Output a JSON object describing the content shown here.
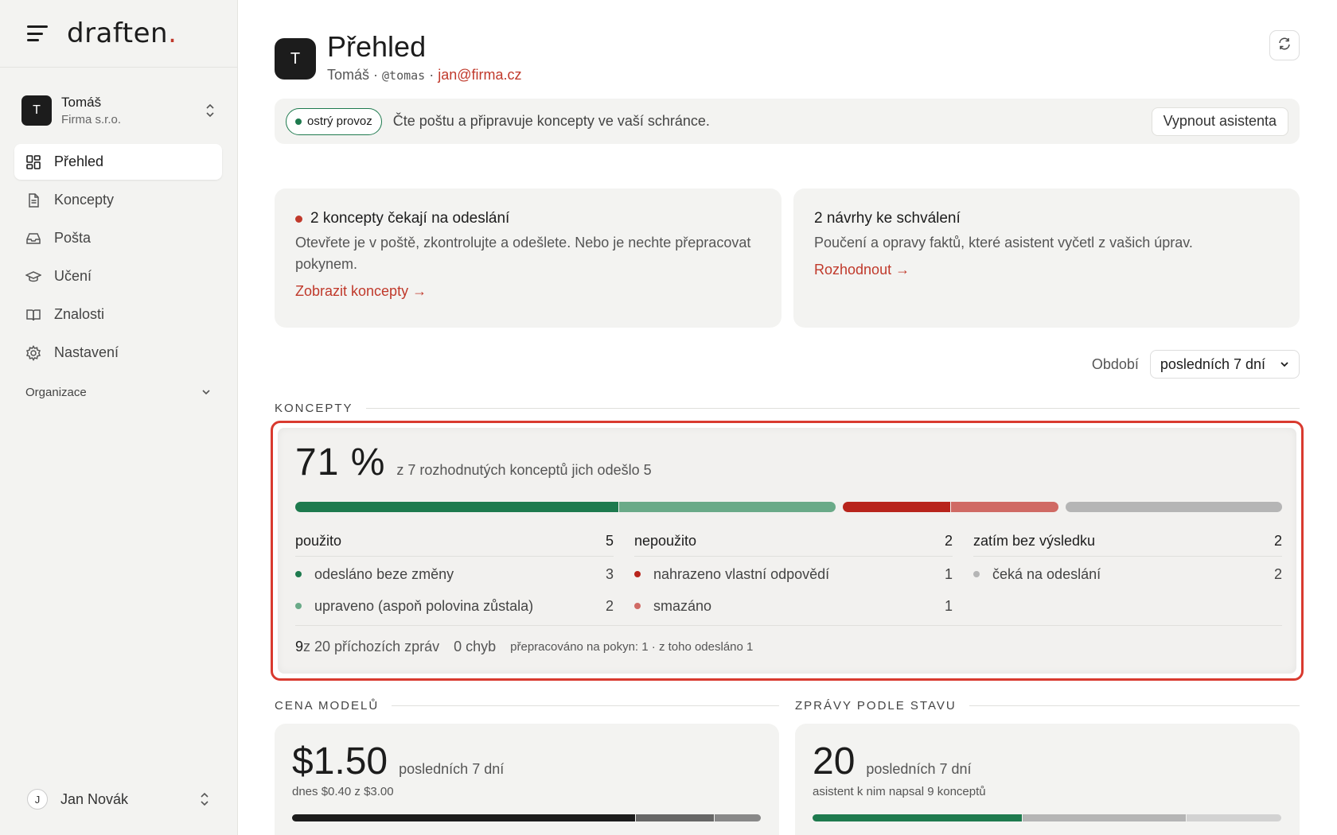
{
  "brand": {
    "name": "draften",
    "dot": "."
  },
  "account": {
    "initial": "T",
    "name": "Tomáš",
    "org": "Firma s.r.o."
  },
  "nav": [
    {
      "label": "Přehled",
      "icon": "grid-icon",
      "active": true
    },
    {
      "label": "Koncepty",
      "icon": "document-icon",
      "active": false
    },
    {
      "label": "Pošta",
      "icon": "inbox-icon",
      "active": false
    },
    {
      "label": "Učení",
      "icon": "graduation-cap-icon",
      "active": false
    },
    {
      "label": "Znalosti",
      "icon": "book-icon",
      "active": false
    },
    {
      "label": "Nastavení",
      "icon": "gear-icon",
      "active": false
    }
  ],
  "org_section": {
    "label": "Organizace"
  },
  "user": {
    "initial": "J",
    "name": "Jan Novák"
  },
  "header": {
    "initial": "T",
    "title": "Přehled",
    "name": "Tomáš",
    "sep1": " · ",
    "handle": "@tomas",
    "sep2": " · ",
    "email": "jan@firma.cz"
  },
  "status": {
    "pill": "ostrý provoz",
    "text": "Čte poštu a připravuje koncepty ve vaší schránce.",
    "button": "Vypnout asistenta"
  },
  "cards": {
    "drafts_waiting": {
      "title": "2 koncepty čekají na odeslání",
      "text": "Otevřete je v poště, zkontrolujte a odešlete. Nebo je nechte přepracovat pokynem.",
      "link": "Zobrazit koncepty →"
    },
    "approvals": {
      "title": "2 návrhy ke schválení",
      "text": "Poučení a opravy faktů, které asistent vyčetl z vašich úprav.",
      "link": "Rozhodnout →"
    }
  },
  "period": {
    "label": "Období",
    "value": "posledních 7 dní"
  },
  "sections": {
    "drafts": "KONCEPTY",
    "cost": "CENA MODELŮ",
    "messages": "ZPRÁVY PODLE STAVU"
  },
  "drafts": {
    "percent": "71 %",
    "caption": "z 7 rozhodnutých konceptů jich odešlo 5",
    "colors": {
      "sent_unchanged": "#1e7a4e",
      "edited": "#6aaa88",
      "replaced": "#b8241c",
      "deleted": "#d06a64",
      "waiting": "#b5b5b5"
    },
    "bar": {
      "sent_unchanged": 3,
      "edited": 2,
      "replaced": 1,
      "deleted": 1,
      "waiting": 2
    },
    "used": {
      "label": "použito",
      "count": "5",
      "rows": [
        {
          "label": "odesláno beze změny",
          "count": "3"
        },
        {
          "label": "upraveno (aspoň polovina zůstala)",
          "count": "2"
        }
      ]
    },
    "unused": {
      "label": "nepoužito",
      "count": "2",
      "rows": [
        {
          "label": "nahrazeno vlastní odpovědí",
          "count": "1"
        },
        {
          "label": "smazáno",
          "count": "1"
        }
      ]
    },
    "pending": {
      "label": "zatím bez výsledku",
      "count": "2",
      "rows": [
        {
          "label": "čeká na odeslání",
          "count": "2"
        }
      ]
    },
    "footer": {
      "count": "9",
      "of_text": " z 20 příchozích zpráv",
      "errors": "0 chyb",
      "reworked": "přepracováno na pokyn: 1 · z toho odesláno 1"
    }
  },
  "cost": {
    "value": "$1.50",
    "caption": "posledních 7 dní",
    "sub": "dnes $0.40 z $3.00"
  },
  "messages": {
    "value": "20",
    "caption": "posledních 7 dní",
    "sub": "asistent k nim napsal 9 konceptů"
  }
}
